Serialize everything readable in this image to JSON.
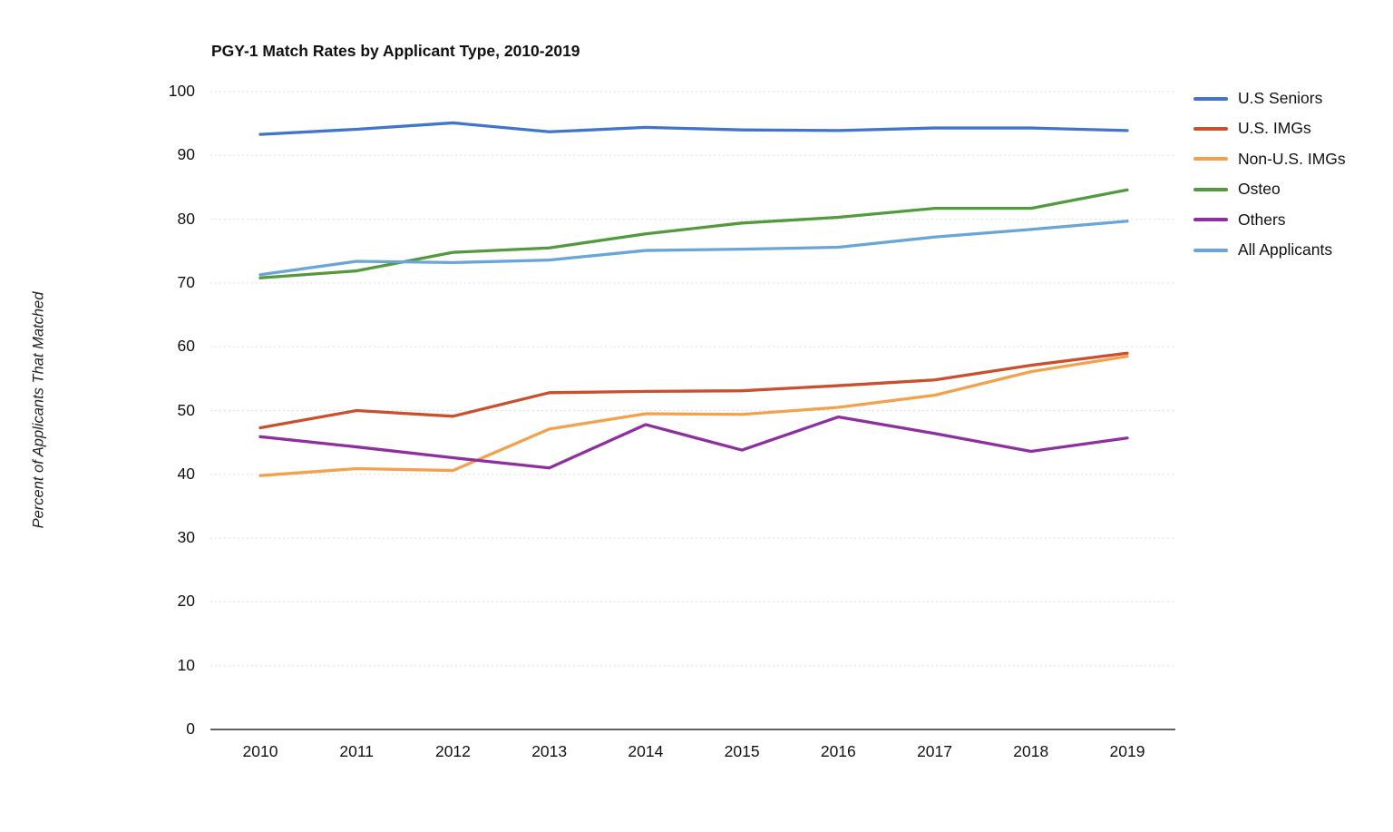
{
  "title": "PGY-1 Match Rates by Applicant Type, 2010-2019",
  "chart_data": {
    "type": "line",
    "title": "PGY-1 Match Rates by Applicant Type, 2010-2019",
    "xlabel": "",
    "ylabel": "Percent of Applicants That Matched",
    "categories": [
      "2010",
      "2011",
      "2012",
      "2013",
      "2014",
      "2015",
      "2016",
      "2017",
      "2018",
      "2019"
    ],
    "ylim": [
      0,
      100
    ],
    "ytick_step": 10,
    "grid": "horizontal-dotted",
    "legend_position": "right",
    "series": [
      {
        "name": "U.S Seniors",
        "color": "#4374cb",
        "values": [
          93.3,
          94.1,
          95.1,
          93.7,
          94.4,
          94.0,
          93.9,
          94.3,
          94.3,
          93.9
        ]
      },
      {
        "name": "U.S. IMGs",
        "color": "#c94f2e",
        "values": [
          47.3,
          50.0,
          49.1,
          52.8,
          53.0,
          53.1,
          53.9,
          54.8,
          57.1,
          59.0
        ]
      },
      {
        "name": "Non-U.S. IMGs",
        "color": "#f2a14c",
        "values": [
          39.8,
          40.9,
          40.6,
          47.1,
          49.5,
          49.4,
          50.5,
          52.4,
          56.1,
          58.5
        ]
      },
      {
        "name": "Osteo",
        "color": "#53993d",
        "values": [
          70.8,
          71.9,
          74.8,
          75.5,
          77.7,
          79.4,
          80.3,
          81.7,
          81.7,
          84.6
        ]
      },
      {
        "name": "Others",
        "color": "#8e2fa0",
        "values": [
          45.9,
          44.3,
          42.6,
          41.0,
          47.8,
          43.8,
          49.0,
          46.4,
          43.6,
          45.7
        ]
      },
      {
        "name": "All Applicants",
        "color": "#6aa5d8",
        "values": [
          71.3,
          73.4,
          73.2,
          73.6,
          75.1,
          75.3,
          75.6,
          77.2,
          78.4,
          79.7
        ]
      }
    ],
    "axis_color": "#2a2a2a",
    "gridline_color": "#dedede",
    "text_color": "#111111"
  }
}
